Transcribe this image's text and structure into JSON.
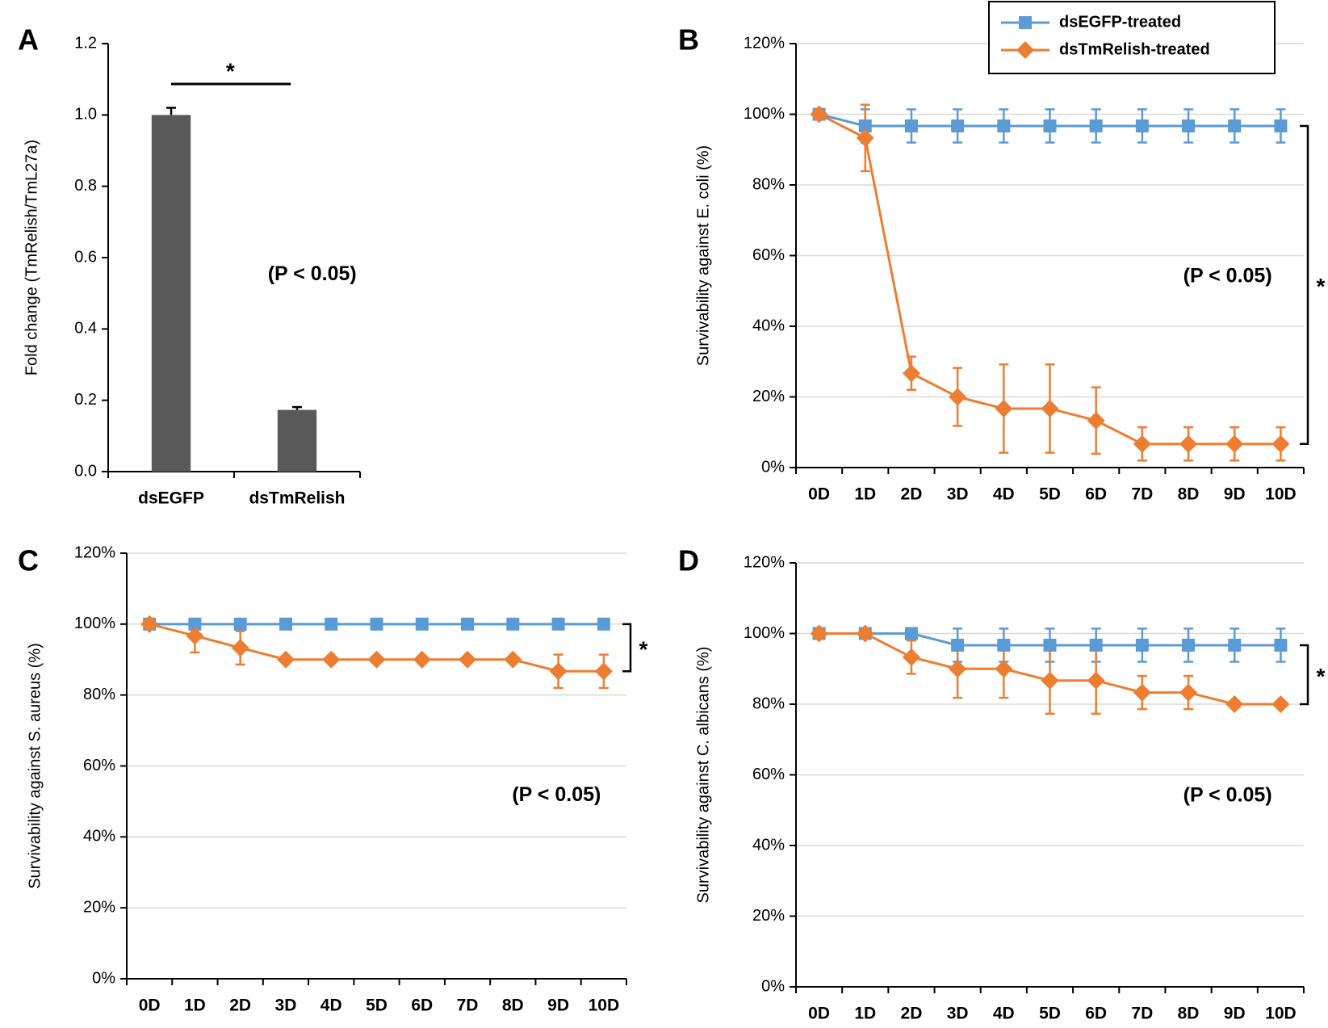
{
  "chart_data": [
    {
      "type": "bar",
      "panel_label": "A",
      "ylabel": "Fold change (TmRelish/TmL27a)",
      "categories": [
        "dsEGFP",
        "dsTmRelish"
      ],
      "values": [
        1.0,
        0.173
      ],
      "errors": [
        0.02,
        0.008
      ],
      "color": "#595959",
      "ylim": [
        0,
        1.2
      ],
      "yticks": [
        {
          "value": 0,
          "label": "0.0"
        },
        0.2,
        0.4,
        0.6,
        0.8,
        {
          "value": 1,
          "label": "1.0"
        },
        1.2
      ],
      "grid": false,
      "significance": "*",
      "note": "(P < 0.05)"
    },
    {
      "type": "line",
      "panel_label": "B",
      "ylabel": "Survivability against E. coli (%)",
      "categories": [
        "0D",
        "1D",
        "2D",
        "3D",
        "4D",
        "5D",
        "6D",
        "7D",
        "8D",
        "9D",
        "10D"
      ],
      "series": [
        {
          "name": "dsEGFP-treated",
          "color": "#5b9bd5",
          "marker": "square",
          "values": [
            100,
            96.7,
            96.7,
            96.7,
            96.7,
            96.7,
            96.7,
            96.7,
            96.7,
            96.7,
            96.7
          ],
          "errors": [
            0,
            4.7,
            4.7,
            4.7,
            4.7,
            4.7,
            4.7,
            4.7,
            4.7,
            4.7,
            4.7
          ]
        },
        {
          "name": "dsTmRelish-treated",
          "color": "#ed7d31",
          "marker": "diamond",
          "values": [
            100,
            93.3,
            26.7,
            20,
            16.7,
            16.7,
            13.3,
            6.7,
            6.7,
            6.7,
            6.7
          ],
          "errors": [
            0,
            9.4,
            4.7,
            8.2,
            12.5,
            12.5,
            9.4,
            4.7,
            4.7,
            4.7,
            4.7
          ]
        }
      ],
      "ylim": [
        0,
        120
      ],
      "yticks": [
        {
          "value": 0,
          "label": "0%"
        },
        {
          "value": 20,
          "label": "20%"
        },
        {
          "value": 40,
          "label": "40%"
        },
        {
          "value": 60,
          "label": "60%"
        },
        {
          "value": 80,
          "label": "80%"
        },
        {
          "value": 100,
          "label": "100%"
        },
        {
          "value": 120,
          "label": "120%"
        }
      ],
      "grid": true,
      "legend": "top",
      "significance": "*",
      "note": "(P < 0.05)"
    },
    {
      "type": "line",
      "panel_label": "C",
      "ylabel": "Survivability against S. aureus (%)",
      "categories": [
        "0D",
        "1D",
        "2D",
        "3D",
        "4D",
        "5D",
        "6D",
        "7D",
        "8D",
        "9D",
        "10D"
      ],
      "series": [
        {
          "name": "dsEGFP-treated",
          "color": "#5b9bd5",
          "marker": "square",
          "values": [
            100,
            100,
            100,
            100,
            100,
            100,
            100,
            100,
            100,
            100,
            100
          ],
          "errors": [
            0,
            0,
            0,
            0,
            0,
            0,
            0,
            0,
            0,
            0,
            0
          ]
        },
        {
          "name": "dsTmRelish-treated",
          "color": "#ed7d31",
          "marker": "diamond",
          "values": [
            100,
            96.7,
            93.3,
            90,
            90,
            90,
            90,
            90,
            90,
            86.7,
            86.7
          ],
          "errors": [
            0,
            4.7,
            4.7,
            0,
            0,
            0,
            0,
            0,
            0,
            4.7,
            4.7
          ]
        }
      ],
      "ylim": [
        0,
        120
      ],
      "yticks": [
        {
          "value": 0,
          "label": "0%"
        },
        {
          "value": 20,
          "label": "20%"
        },
        {
          "value": 40,
          "label": "40%"
        },
        {
          "value": 60,
          "label": "60%"
        },
        {
          "value": 80,
          "label": "80%"
        },
        {
          "value": 100,
          "label": "100%"
        },
        {
          "value": 120,
          "label": "120%"
        }
      ],
      "grid": true,
      "significance": "*",
      "note": "(P < 0.05)"
    },
    {
      "type": "line",
      "panel_label": "D",
      "ylabel": "Survivability against C. albicans (%)",
      "categories": [
        "0D",
        "1D",
        "2D",
        "3D",
        "4D",
        "5D",
        "6D",
        "7D",
        "8D",
        "9D",
        "10D"
      ],
      "series": [
        {
          "name": "dsEGFP-treated",
          "color": "#5b9bd5",
          "marker": "square",
          "values": [
            100,
            100,
            100,
            96.7,
            96.7,
            96.7,
            96.7,
            96.7,
            96.7,
            96.7,
            96.7
          ],
          "errors": [
            0,
            0,
            0,
            4.7,
            4.7,
            4.7,
            4.7,
            4.7,
            4.7,
            4.7,
            4.7
          ]
        },
        {
          "name": "dsTmRelish-treated",
          "color": "#ed7d31",
          "marker": "diamond",
          "values": [
            100,
            100,
            93.3,
            90,
            90,
            86.7,
            86.7,
            83.3,
            83.3,
            80,
            80
          ],
          "errors": [
            0,
            0,
            4.7,
            8.2,
            8.2,
            9.4,
            9.4,
            4.7,
            4.7,
            0,
            0
          ]
        }
      ],
      "ylim": [
        0,
        120
      ],
      "yticks": [
        {
          "value": 0,
          "label": "0%"
        },
        {
          "value": 20,
          "label": "20%"
        },
        {
          "value": 40,
          "label": "40%"
        },
        {
          "value": 60,
          "label": "60%"
        },
        {
          "value": 80,
          "label": "80%"
        },
        {
          "value": 100,
          "label": "100%"
        },
        {
          "value": 120,
          "label": "120%"
        }
      ],
      "grid": true,
      "significance": "*",
      "note": "(P < 0.05)"
    }
  ]
}
